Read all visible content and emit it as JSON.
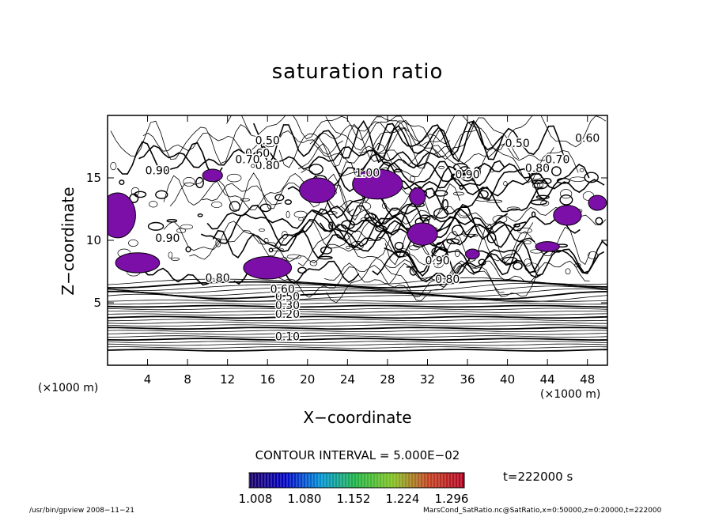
{
  "chart_data": {
    "type": "contour",
    "title": "saturation ratio",
    "xlabel": "X−coordinate",
    "ylabel": "Z−coordinate",
    "x_unit_label": "(×1000 m)",
    "xlim": [
      0,
      50
    ],
    "ylim": [
      0,
      20
    ],
    "x_ticks": [
      4,
      8,
      12,
      16,
      20,
      24,
      28,
      32,
      36,
      40,
      44,
      48
    ],
    "y_ticks": [
      5,
      10,
      15
    ],
    "contour_labels": [
      "0.10",
      "0.20",
      "0.30",
      "0.50",
      "0.60",
      "0.70",
      "0.80",
      "0.90",
      "1.00"
    ],
    "contour_interval_text": "CONTOUR INTERVAL = 5.000E−02",
    "time_text": "t=222000 s",
    "colorbar_ticks": [
      "1.008",
      "1.080",
      "1.152",
      "1.224",
      "1.296"
    ],
    "shade_color": "#7b0fa8",
    "colorbar_colors": [
      "#1a0060",
      "#0000c0",
      "#0090d0",
      "#20b040",
      "#80c020",
      "#c04020",
      "#b00020"
    ]
  },
  "footer": {
    "left": "/usr/bin/gpview   2008−11−21",
    "right": "MarsCond_SatRatio.nc@SatRatio,x=0:50000,z=0:20000,t=222000"
  }
}
